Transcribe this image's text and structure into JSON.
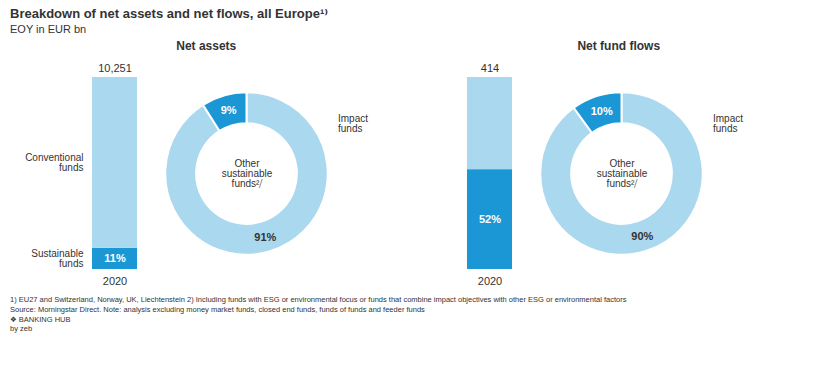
{
  "title": "Breakdown of net assets and net flows, all Europe¹⁾",
  "subtitle": "EOY in EUR bn",
  "annotations": [
    "1) EU27 and Switzerland, Norway, UK, Liechtenstein 2) Including funds with ESG or environmental focus or funds that combine impact objectives with other ESG or environmental factors",
    "Source: Morningstar Direct. Note: analysis excluding money market funds, closed end funds, funds of funds and feeder funds",
    "❖ BANKING HUB",
    "by zeb"
  ],
  "chart_data": [
    {
      "type": "bar",
      "title": "Net assets",
      "stacked": true,
      "categories": [
        "2020"
      ],
      "series": [
        {
          "name": "Sustainable\nfunds",
          "color": "#1B97D5",
          "values": [
            11
          ],
          "value_labels": [
            "11%"
          ]
        },
        {
          "name": "Conventional\nfunds",
          "color": "#AAD8EE",
          "values": [
            89
          ]
        }
      ],
      "total": [
        10251
      ],
      "ylim": [
        0,
        100
      ],
      "yticks": [],
      "tick_labels": "x"
    },
    {
      "type": "pie",
      "categories": [
        "Other\nsustainable\nfunds²⧸",
        "Impact\nfunds"
      ],
      "values": [
        91,
        9
      ],
      "value_labels": [
        "91%",
        "9%"
      ],
      "colors": [
        "#AAD8EE",
        "#1B97D5"
      ],
      "data_labels": true
    },
    {
      "type": "bar",
      "title": "Net fund flows",
      "stacked": true,
      "categories": [
        "2020"
      ],
      "series": [
        {
          "color": "#1B97D5",
          "values": [
            52
          ],
          "value_labels": [
            "52%"
          ]
        },
        {
          "color": "#AAD8EE",
          "values": [
            48
          ]
        }
      ],
      "total": [
        414
      ],
      "ylim": [
        0,
        100
      ],
      "yticks": [],
      "tick_labels": "x"
    },
    {
      "type": "pie",
      "categories": [
        "Other\nsustainable\nfunds²⧸",
        "Impact\nfunds"
      ],
      "values": [
        90,
        10
      ],
      "value_labels": [
        "90%",
        "10%"
      ],
      "colors": [
        "#AAD8EE",
        "#1B97D5"
      ],
      "data_labels": true
    }
  ]
}
